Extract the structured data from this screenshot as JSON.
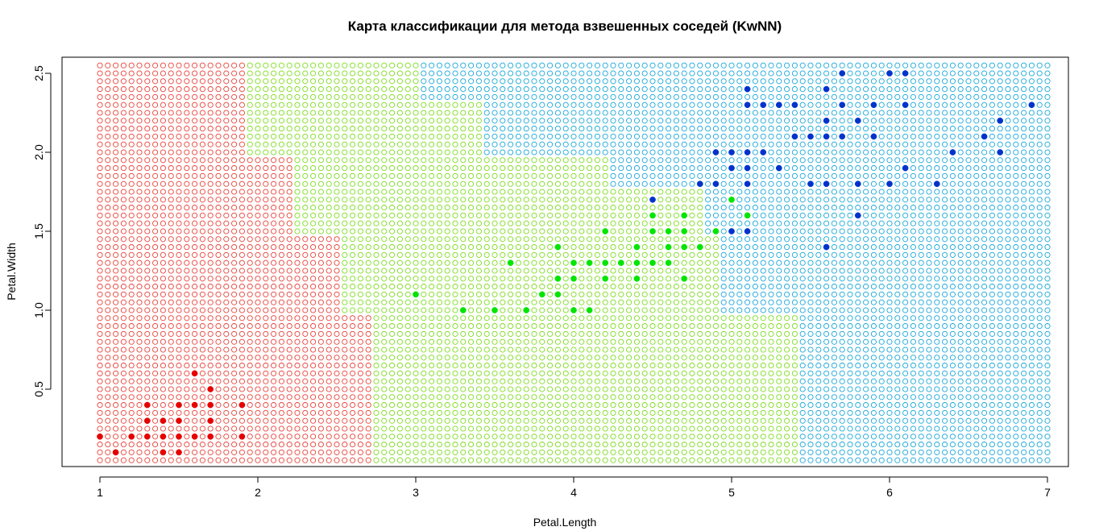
{
  "chart_data": {
    "type": "scatter",
    "title": "Карта классификации для метода взвешенных соседей (KwNN)",
    "xlabel": "Petal.Length",
    "ylabel": "Petal.Width",
    "xlim": [
      1,
      7
    ],
    "ylim": [
      0.1,
      2.5
    ],
    "xticks": [
      "1",
      "2",
      "3",
      "4",
      "5",
      "6",
      "7"
    ],
    "yticks": [
      "0.5",
      "1.0",
      "1.5",
      "2.0",
      "2.5"
    ],
    "colors": {
      "setosa_grid": "#e8423a",
      "versicolor_grid": "#7ddc1f",
      "virginica_grid": "#1aa7d8",
      "setosa_point": "#e60000",
      "versicolor_point": "#00e600",
      "virginica_point": "#0033cc"
    },
    "classification_map": {
      "x_range": [
        1.0,
        7.0
      ],
      "y_range": [
        0.05,
        2.55
      ],
      "step": 0.1,
      "regions": [
        {
          "class": "setosa",
          "y_from": 0.05,
          "y_to": 0.95,
          "x_to": 2.7
        },
        {
          "class": "setosa",
          "y_from": 1.0,
          "y_to": 1.45,
          "x_to": 2.5
        },
        {
          "class": "setosa",
          "y_from": 1.5,
          "y_to": 1.95,
          "x_to": 2.2
        },
        {
          "class": "setosa",
          "y_from": 2.0,
          "y_to": 2.6,
          "x_to": 1.9
        },
        {
          "class": "versicolor",
          "y_from": 0.05,
          "y_to": 0.95,
          "x_to": 5.4
        },
        {
          "class": "versicolor",
          "y_from": 1.0,
          "y_to": 1.45,
          "x_to": 4.9
        },
        {
          "class": "versicolor",
          "y_from": 1.5,
          "y_to": 1.75,
          "x_to": 4.8
        },
        {
          "class": "versicolor",
          "y_from": 1.8,
          "y_to": 1.95,
          "x_to": 4.2
        },
        {
          "class": "versicolor",
          "y_from": 2.0,
          "y_to": 2.3,
          "x_to": 3.4
        },
        {
          "class": "versicolor",
          "y_from": 2.35,
          "y_to": 2.6,
          "x_to": 3.0
        }
      ]
    },
    "series": [
      {
        "name": "setosa",
        "points": [
          [
            1.0,
            0.2
          ],
          [
            1.1,
            0.1
          ],
          [
            1.2,
            0.2
          ],
          [
            1.3,
            0.2
          ],
          [
            1.3,
            0.3
          ],
          [
            1.3,
            0.4
          ],
          [
            1.4,
            0.1
          ],
          [
            1.4,
            0.2
          ],
          [
            1.4,
            0.3
          ],
          [
            1.5,
            0.1
          ],
          [
            1.5,
            0.2
          ],
          [
            1.5,
            0.3
          ],
          [
            1.5,
            0.4
          ],
          [
            1.6,
            0.2
          ],
          [
            1.6,
            0.4
          ],
          [
            1.6,
            0.6
          ],
          [
            1.7,
            0.2
          ],
          [
            1.7,
            0.3
          ],
          [
            1.7,
            0.4
          ],
          [
            1.7,
            0.5
          ],
          [
            1.9,
            0.2
          ],
          [
            1.9,
            0.4
          ]
        ]
      },
      {
        "name": "versicolor",
        "points": [
          [
            3.0,
            1.1
          ],
          [
            3.3,
            1.0
          ],
          [
            3.5,
            1.0
          ],
          [
            3.6,
            1.3
          ],
          [
            3.7,
            1.0
          ],
          [
            3.8,
            1.1
          ],
          [
            3.9,
            1.1
          ],
          [
            3.9,
            1.2
          ],
          [
            3.9,
            1.4
          ],
          [
            4.0,
            1.0
          ],
          [
            4.0,
            1.2
          ],
          [
            4.0,
            1.3
          ],
          [
            4.1,
            1.0
          ],
          [
            4.1,
            1.3
          ],
          [
            4.2,
            1.2
          ],
          [
            4.2,
            1.3
          ],
          [
            4.2,
            1.5
          ],
          [
            4.3,
            1.3
          ],
          [
            4.4,
            1.2
          ],
          [
            4.4,
            1.3
          ],
          [
            4.4,
            1.4
          ],
          [
            4.5,
            1.3
          ],
          [
            4.5,
            1.5
          ],
          [
            4.5,
            1.6
          ],
          [
            4.6,
            1.3
          ],
          [
            4.6,
            1.4
          ],
          [
            4.6,
            1.5
          ],
          [
            4.7,
            1.2
          ],
          [
            4.7,
            1.4
          ],
          [
            4.7,
            1.5
          ],
          [
            4.7,
            1.6
          ],
          [
            4.8,
            1.4
          ],
          [
            4.9,
            1.5
          ],
          [
            5.0,
            1.7
          ],
          [
            5.1,
            1.6
          ]
        ]
      },
      {
        "name": "virginica",
        "points": [
          [
            4.5,
            1.7
          ],
          [
            4.8,
            1.8
          ],
          [
            4.9,
            1.8
          ],
          [
            4.9,
            2.0
          ],
          [
            5.0,
            1.5
          ],
          [
            5.0,
            1.9
          ],
          [
            5.0,
            2.0
          ],
          [
            5.1,
            1.5
          ],
          [
            5.1,
            1.8
          ],
          [
            5.1,
            1.9
          ],
          [
            5.1,
            2.0
          ],
          [
            5.1,
            2.3
          ],
          [
            5.1,
            2.4
          ],
          [
            5.2,
            2.0
          ],
          [
            5.2,
            2.3
          ],
          [
            5.3,
            1.9
          ],
          [
            5.3,
            2.3
          ],
          [
            5.4,
            2.1
          ],
          [
            5.4,
            2.3
          ],
          [
            5.5,
            1.8
          ],
          [
            5.5,
            2.1
          ],
          [
            5.6,
            1.4
          ],
          [
            5.6,
            1.8
          ],
          [
            5.6,
            2.1
          ],
          [
            5.6,
            2.2
          ],
          [
            5.6,
            2.4
          ],
          [
            5.7,
            2.1
          ],
          [
            5.7,
            2.3
          ],
          [
            5.7,
            2.5
          ],
          [
            5.8,
            1.6
          ],
          [
            5.8,
            1.8
          ],
          [
            5.8,
            2.2
          ],
          [
            5.9,
            2.1
          ],
          [
            5.9,
            2.3
          ],
          [
            6.0,
            1.8
          ],
          [
            6.0,
            2.5
          ],
          [
            6.1,
            1.9
          ],
          [
            6.1,
            2.3
          ],
          [
            6.1,
            2.5
          ],
          [
            6.3,
            1.8
          ],
          [
            6.4,
            2.0
          ],
          [
            6.6,
            2.1
          ],
          [
            6.7,
            2.0
          ],
          [
            6.7,
            2.2
          ],
          [
            6.9,
            2.3
          ]
        ]
      }
    ]
  }
}
